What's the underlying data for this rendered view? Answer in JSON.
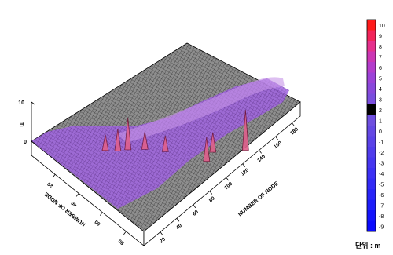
{
  "chart_data": {
    "type": "surface",
    "title": "",
    "xlabel": "NUMBER OF NODE",
    "ylabel": "NUMBER OF NODE",
    "zlabel": "m",
    "x_ticks": [
      "20",
      "40",
      "60",
      "80",
      "100",
      "120",
      "140",
      "160",
      "180"
    ],
    "y_ticks": [
      "20",
      "40",
      "60",
      "80"
    ],
    "z_ticks": [
      "0",
      "10"
    ],
    "xlim": [
      0,
      190
    ],
    "ylim": [
      0,
      95
    ],
    "zlim": [
      0,
      10
    ],
    "colorbar": {
      "ticks": [
        "10",
        "9",
        "8",
        "7",
        "6",
        "5",
        "4",
        "3",
        "2",
        "1",
        "0",
        "-1",
        "-2",
        "-3",
        "-4",
        "-5",
        "-6",
        "-7",
        "-8",
        "-9"
      ],
      "min": -9,
      "max": 10,
      "unit_label": "단위 : m",
      "colors": [
        "#ff1a1a",
        "#f2245a",
        "#e6308c",
        "#cc36b4",
        "#b43ccc",
        "#9c42d8",
        "#8a48dc",
        "#7a4ede",
        "#000000",
        "#6f4fe0",
        "#6448e4",
        "#5a42e8",
        "#503cec",
        "#4636f0",
        "#3c30f4",
        "#322af6",
        "#2824f8",
        "#1e1efa",
        "#1414fc",
        "#0a0afe"
      ]
    },
    "peaks": [
      {
        "x": 168,
        "y": 70,
        "z": 9.5
      },
      {
        "x": 146,
        "y": 58,
        "z": 4.5
      },
      {
        "x": 152,
        "y": 52,
        "z": 5.5
      },
      {
        "x": 80,
        "y": 30,
        "z": 7.5
      },
      {
        "x": 74,
        "y": 26,
        "z": 5.0
      },
      {
        "x": 64,
        "y": 22,
        "z": 3.5
      },
      {
        "x": 92,
        "y": 36,
        "z": 4.0
      },
      {
        "x": 110,
        "y": 42,
        "z": 3.5
      }
    ]
  }
}
